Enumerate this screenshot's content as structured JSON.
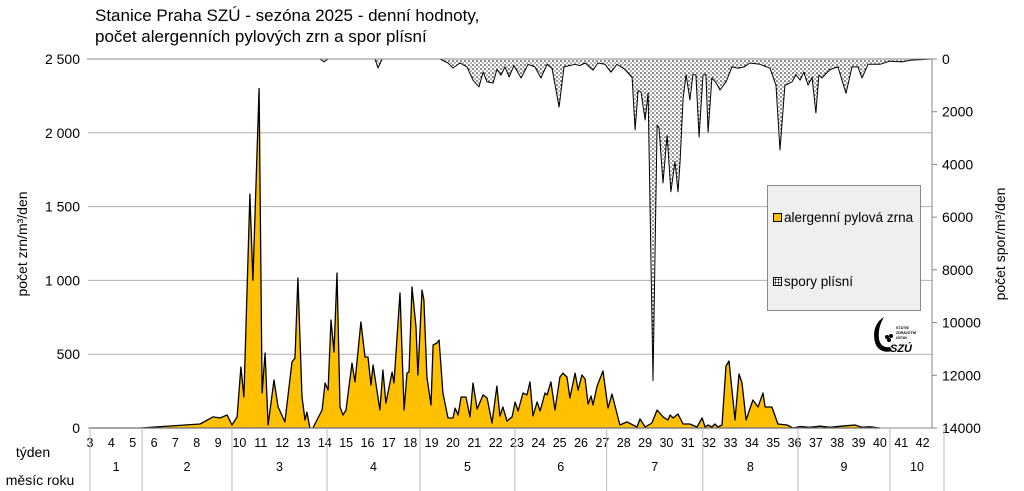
{
  "title_line1": "Stanice Praha SZÚ - sezóna 2025 - denní hodnoty,",
  "title_line2": "počet alergenních pylových zrn a spor plísní",
  "logo": {
    "text": "SZÚ",
    "subtext": "STÁTNÍ ZDRAVOTNÍ ÚSTAV"
  },
  "colors": {
    "pollen": "#FFC000",
    "spores_fill": "#FFFFFF",
    "outline": "#000000",
    "legend_bg": "#EFEFEF",
    "grid": "#B0B0B0"
  },
  "chart_data": {
    "type": "area",
    "title": "Stanice Praha SZÚ - sezóna 2025 - denní hodnoty, počet alergenních pylových zrn a spor plísní",
    "xlabel_rows": [
      "týden",
      "měsíc roku"
    ],
    "ylabel_left": "počet zrn/m³/den",
    "ylabel_right": "počet spor/m³/den",
    "ylim_left": [
      0,
      2500
    ],
    "ylim_right_inverted": [
      0,
      14000
    ],
    "y_ticks_left": [
      "2 500",
      "2 000",
      "1 500",
      "1 000",
      "500",
      "0"
    ],
    "y_ticks_right": [
      "0",
      "2000",
      "4000",
      "6000",
      "8000",
      "10000",
      "12000",
      "14000"
    ],
    "weeks": [
      3,
      4,
      5,
      6,
      7,
      8,
      9,
      10,
      11,
      12,
      13,
      14,
      15,
      16,
      17,
      18,
      19,
      20,
      21,
      22,
      23,
      24,
      25,
      26,
      27,
      28,
      29,
      30,
      31,
      32,
      33,
      34,
      35,
      36,
      37,
      38,
      39,
      40,
      41,
      42
    ],
    "months": [
      "1",
      "2",
      "3",
      "4",
      "5",
      "6",
      "7",
      "8",
      "9",
      "10"
    ],
    "grid": true,
    "legend_placement": "right",
    "series": [
      {
        "name": "alergenní pylová zrna",
        "axis": "left",
        "points": [
          [
            3.0,
            0
          ],
          [
            5.34,
            0
          ],
          [
            8.15,
            27
          ],
          [
            8.76,
            75
          ],
          [
            9.09,
            68
          ],
          [
            9.42,
            88
          ],
          [
            9.65,
            20
          ],
          [
            9.89,
            75
          ],
          [
            10.07,
            413
          ],
          [
            10.21,
            210
          ],
          [
            10.49,
            1585
          ],
          [
            10.63,
            1000
          ],
          [
            10.92,
            2300
          ],
          [
            11.06,
            237
          ],
          [
            11.2,
            508
          ],
          [
            11.34,
            20
          ],
          [
            11.62,
            325
          ],
          [
            11.81,
            142
          ],
          [
            12.13,
            41
          ],
          [
            12.46,
            447
          ],
          [
            12.6,
            474
          ],
          [
            12.74,
            1016
          ],
          [
            12.93,
            210
          ],
          [
            13.07,
            54
          ],
          [
            13.16,
            108
          ],
          [
            13.3,
            0
          ],
          [
            13.44,
            0
          ],
          [
            13.87,
            122
          ],
          [
            14.01,
            305
          ],
          [
            14.15,
            257
          ],
          [
            14.29,
            732
          ],
          [
            14.43,
            515
          ],
          [
            14.57,
            1050
          ],
          [
            14.71,
            142
          ],
          [
            14.85,
            88
          ],
          [
            14.99,
            122
          ],
          [
            15.27,
            440
          ],
          [
            15.41,
            312
          ],
          [
            15.69,
            718
          ],
          [
            15.88,
            481
          ],
          [
            16.02,
            481
          ],
          [
            16.16,
            291
          ],
          [
            16.26,
            427
          ],
          [
            16.58,
            122
          ],
          [
            16.72,
            393
          ],
          [
            16.86,
            169
          ],
          [
            17.15,
            379
          ],
          [
            17.24,
            305
          ],
          [
            17.52,
            915
          ],
          [
            17.71,
            122
          ],
          [
            17.85,
            372
          ],
          [
            17.94,
            379
          ],
          [
            18.08,
            955
          ],
          [
            18.27,
            684
          ],
          [
            18.36,
            359
          ],
          [
            18.55,
            935
          ],
          [
            18.64,
            867
          ],
          [
            18.78,
            345
          ],
          [
            18.97,
            156
          ],
          [
            19.07,
            562
          ],
          [
            19.25,
            576
          ],
          [
            19.35,
            596
          ],
          [
            19.53,
            237
          ],
          [
            19.77,
            68
          ],
          [
            20.0,
            68
          ],
          [
            20.1,
            135
          ],
          [
            20.24,
            88
          ],
          [
            20.38,
            210
          ],
          [
            20.61,
            210
          ],
          [
            20.8,
            75
          ],
          [
            20.94,
            305
          ],
          [
            21.13,
            129
          ],
          [
            21.41,
            224
          ],
          [
            21.6,
            203
          ],
          [
            21.83,
            34
          ],
          [
            22.06,
            284
          ],
          [
            22.2,
            81
          ],
          [
            22.34,
            142
          ],
          [
            22.53,
            47
          ],
          [
            22.77,
            75
          ],
          [
            22.91,
            176
          ],
          [
            23.05,
            115
          ],
          [
            23.28,
            237
          ],
          [
            23.47,
            224
          ],
          [
            23.61,
            312
          ],
          [
            23.75,
            81
          ],
          [
            23.94,
            176
          ],
          [
            24.08,
            115
          ],
          [
            24.31,
            237
          ],
          [
            24.41,
            224
          ],
          [
            24.59,
            312
          ],
          [
            24.78,
            122
          ],
          [
            25.01,
            345
          ],
          [
            25.15,
            372
          ],
          [
            25.34,
            345
          ],
          [
            25.48,
            203
          ],
          [
            25.72,
            372
          ],
          [
            25.86,
            257
          ],
          [
            26.04,
            359
          ],
          [
            26.19,
            332
          ],
          [
            26.33,
            162
          ],
          [
            26.47,
            217
          ],
          [
            26.56,
            156
          ],
          [
            26.75,
            284
          ],
          [
            27.03,
            386
          ],
          [
            27.26,
            135
          ],
          [
            27.45,
            230
          ],
          [
            27.82,
            20
          ],
          [
            28.15,
            41
          ],
          [
            28.62,
            7
          ],
          [
            28.76,
            61
          ],
          [
            29.0,
            7
          ],
          [
            29.32,
            34
          ],
          [
            29.56,
            122
          ],
          [
            29.84,
            75
          ],
          [
            30.07,
            54
          ],
          [
            30.17,
            88
          ],
          [
            30.31,
            68
          ],
          [
            30.54,
            95
          ],
          [
            30.78,
            27
          ],
          [
            31.1,
            27
          ],
          [
            31.43,
            7
          ],
          [
            31.67,
            68
          ],
          [
            31.81,
            7
          ],
          [
            31.95,
            20
          ],
          [
            32.13,
            7
          ],
          [
            32.27,
            27
          ],
          [
            32.41,
            7
          ],
          [
            32.6,
            20
          ],
          [
            32.79,
            420
          ],
          [
            32.93,
            454
          ],
          [
            33.21,
            54
          ],
          [
            33.4,
            366
          ],
          [
            33.54,
            305
          ],
          [
            33.73,
            54
          ],
          [
            34.05,
            190
          ],
          [
            34.29,
            142
          ],
          [
            34.52,
            237
          ],
          [
            34.62,
            142
          ],
          [
            34.94,
            142
          ],
          [
            35.22,
            27
          ],
          [
            35.65,
            20
          ],
          [
            35.93,
            0
          ],
          [
            36.26,
            10
          ],
          [
            36.72,
            5
          ],
          [
            37.19,
            12
          ],
          [
            37.66,
            5
          ],
          [
            38.36,
            15
          ],
          [
            38.83,
            20
          ],
          [
            39.16,
            5
          ],
          [
            39.53,
            8
          ],
          [
            40.0,
            0
          ]
        ]
      },
      {
        "name": "spory plísní",
        "axis": "right",
        "points": [
          [
            2.9,
            0
          ],
          [
            13.77,
            0
          ],
          [
            13.96,
            110
          ],
          [
            14.15,
            0
          ],
          [
            16.35,
            0
          ],
          [
            16.49,
            340
          ],
          [
            16.68,
            0
          ],
          [
            19.39,
            0
          ],
          [
            19.77,
            150
          ],
          [
            20.0,
            340
          ],
          [
            20.33,
            150
          ],
          [
            20.66,
            300
          ],
          [
            20.94,
            800
          ],
          [
            21.22,
            1060
          ],
          [
            21.41,
            500
          ],
          [
            21.6,
            870
          ],
          [
            21.88,
            910
          ],
          [
            22.06,
            400
          ],
          [
            22.25,
            610
          ],
          [
            22.44,
            300
          ],
          [
            22.63,
            680
          ],
          [
            22.86,
            250
          ],
          [
            23.19,
            720
          ],
          [
            23.52,
            200
          ],
          [
            23.84,
            300
          ],
          [
            24.12,
            720
          ],
          [
            24.41,
            200
          ],
          [
            24.64,
            350
          ],
          [
            24.97,
            1820
          ],
          [
            25.2,
            300
          ],
          [
            25.72,
            200
          ],
          [
            25.95,
            250
          ],
          [
            26.19,
            150
          ],
          [
            26.56,
            420
          ],
          [
            26.79,
            150
          ],
          [
            27.12,
            200
          ],
          [
            27.4,
            500
          ],
          [
            27.68,
            200
          ],
          [
            28.06,
            400
          ],
          [
            28.39,
            700
          ],
          [
            28.53,
            2690
          ],
          [
            28.67,
            1200
          ],
          [
            28.81,
            1250
          ],
          [
            29.0,
            2310
          ],
          [
            29.14,
            1300
          ],
          [
            29.37,
            12200
          ],
          [
            29.56,
            2500
          ],
          [
            29.65,
            2620
          ],
          [
            29.84,
            4700
          ],
          [
            30.03,
            2880
          ],
          [
            30.21,
            5040
          ],
          [
            30.4,
            3890
          ],
          [
            30.54,
            5040
          ],
          [
            30.64,
            3890
          ],
          [
            30.78,
            1500
          ],
          [
            30.92,
            600
          ],
          [
            31.1,
            1550
          ],
          [
            31.24,
            600
          ],
          [
            31.38,
            600
          ],
          [
            31.53,
            2960
          ],
          [
            31.71,
            600
          ],
          [
            31.85,
            600
          ],
          [
            31.95,
            2770
          ],
          [
            32.13,
            720
          ],
          [
            32.32,
            900
          ],
          [
            32.51,
            1175
          ],
          [
            32.79,
            870
          ],
          [
            33.07,
            300
          ],
          [
            33.35,
            350
          ],
          [
            33.63,
            300
          ],
          [
            33.91,
            150
          ],
          [
            34.38,
            200
          ],
          [
            34.85,
            350
          ],
          [
            35.13,
            1000
          ],
          [
            35.32,
            3450
          ],
          [
            35.55,
            1000
          ],
          [
            35.88,
            870
          ],
          [
            36.07,
            600
          ],
          [
            36.26,
            800
          ],
          [
            36.44,
            500
          ],
          [
            36.63,
            990
          ],
          [
            36.82,
            700
          ],
          [
            37.0,
            2050
          ],
          [
            37.14,
            600
          ],
          [
            37.28,
            720
          ],
          [
            37.66,
            400
          ],
          [
            38.03,
            300
          ],
          [
            38.41,
            1300
          ],
          [
            38.69,
            300
          ],
          [
            38.97,
            300
          ],
          [
            39.16,
            720
          ],
          [
            39.44,
            200
          ],
          [
            40.0,
            200
          ],
          [
            40.47,
            80
          ],
          [
            41.03,
            110
          ],
          [
            41.41,
            50
          ],
          [
            42.44,
            0
          ]
        ]
      }
    ]
  }
}
